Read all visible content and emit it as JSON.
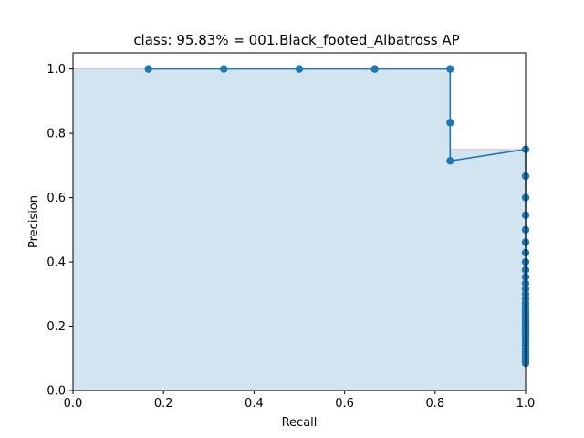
{
  "chart_data": {
    "type": "line",
    "title": "class: 95.83% = 001.Black_footed_Albatross AP",
    "xlabel": "Recall",
    "ylabel": "Precision",
    "xlim": [
      0,
      1
    ],
    "ylim": [
      0,
      1.05
    ],
    "xticks": [
      "0.0",
      "0.2",
      "0.4",
      "0.6",
      "0.8",
      "1.0"
    ],
    "yticks": [
      "0.0",
      "0.2",
      "0.4",
      "0.6",
      "0.8",
      "1.0"
    ],
    "grid": false,
    "series": [
      {
        "kind": "precision-recall-points",
        "color": "#1f77b4",
        "points": [
          [
            0.1667,
            1.0
          ],
          [
            0.3333,
            1.0
          ],
          [
            0.5,
            1.0
          ],
          [
            0.6667,
            1.0
          ],
          [
            0.8333,
            1.0
          ],
          [
            0.8333,
            0.8333
          ],
          [
            0.8333,
            0.7143
          ],
          [
            1.0,
            0.75
          ],
          [
            1.0,
            0.6667
          ],
          [
            1.0,
            0.6
          ],
          [
            1.0,
            0.5455
          ],
          [
            1.0,
            0.5
          ],
          [
            1.0,
            0.4615
          ],
          [
            1.0,
            0.4286
          ],
          [
            1.0,
            0.4
          ],
          [
            1.0,
            0.375
          ],
          [
            1.0,
            0.3529
          ],
          [
            1.0,
            0.3333
          ],
          [
            1.0,
            0.3158
          ],
          [
            1.0,
            0.3
          ],
          [
            1.0,
            0.2857
          ],
          [
            1.0,
            0.2727
          ],
          [
            1.0,
            0.2609
          ],
          [
            1.0,
            0.25
          ],
          [
            1.0,
            0.24
          ],
          [
            1.0,
            0.2308
          ],
          [
            1.0,
            0.2222
          ],
          [
            1.0,
            0.2143
          ],
          [
            1.0,
            0.2069
          ],
          [
            1.0,
            0.2
          ],
          [
            1.0,
            0.1935
          ],
          [
            1.0,
            0.1875
          ],
          [
            1.0,
            0.1818
          ],
          [
            1.0,
            0.1765
          ],
          [
            1.0,
            0.1714
          ],
          [
            1.0,
            0.1667
          ],
          [
            1.0,
            0.16
          ],
          [
            1.0,
            0.15
          ],
          [
            1.0,
            0.14
          ],
          [
            1.0,
            0.13
          ],
          [
            1.0,
            0.12
          ],
          [
            1.0,
            0.11
          ],
          [
            1.0,
            0.1
          ],
          [
            1.0,
            0.095
          ],
          [
            1.0,
            0.09
          ],
          [
            1.0,
            0.085
          ]
        ]
      },
      {
        "kind": "interpolated-precision-area",
        "fill_color": "#1f77b4",
        "edge_color": "#ff0000",
        "steps": [
          [
            0.0,
            1.0
          ],
          [
            0.8333,
            1.0
          ],
          [
            0.8333,
            0.75
          ],
          [
            1.0,
            0.75
          ],
          [
            1.0,
            0.0
          ]
        ]
      }
    ]
  }
}
